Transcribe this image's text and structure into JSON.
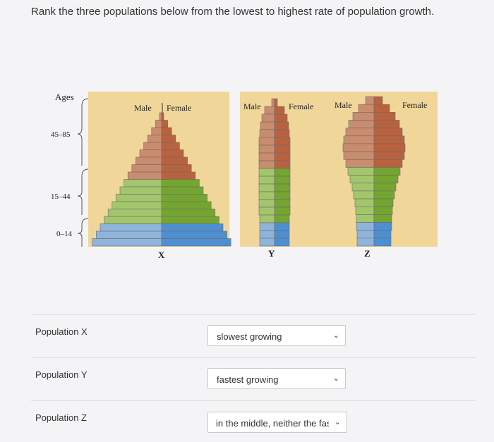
{
  "question": "Rank the three populations below from the lowest to highest rate of population growth.",
  "figure": {
    "ages_label": "Ages",
    "age_groups": [
      "45–85",
      "15–44",
      "0–14"
    ],
    "sex_labels": {
      "male": "Male",
      "female": "Female"
    },
    "pyramids": [
      "X",
      "Y",
      "Z"
    ],
    "colors": {
      "background": "#f1d69a",
      "old": "#c98c6f",
      "old_female": "#b8623f",
      "middle": "#a3c66d",
      "middle_female": "#74a531",
      "young": "#8fb4dc",
      "young_female": "#4d8fd0"
    }
  },
  "rows": [
    {
      "label": "Population X",
      "selected": "slowest growing"
    },
    {
      "label": "Population Y",
      "selected": "fastest growing"
    },
    {
      "label": "Population Z",
      "selected": "in the middle, neither the fast"
    }
  ]
}
